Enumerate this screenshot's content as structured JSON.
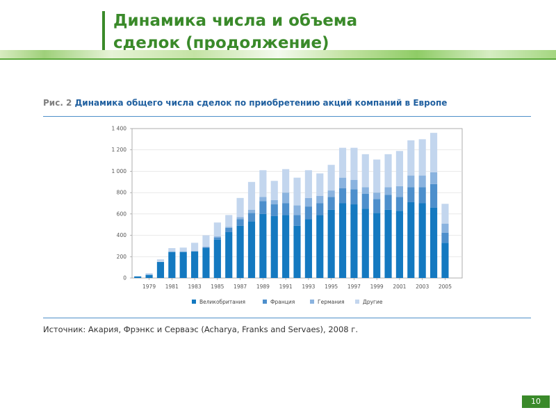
{
  "slide": {
    "title": "Динамика числа и объема\nсделок (продолжение)",
    "page_number": "10"
  },
  "figure": {
    "label": "Рис. 2",
    "caption": "Динамика общего числа сделок по приобретению акций компаний в Европе",
    "source": "Источник: Акария, Фрэнкс и Серваэс (Acharya, Franks and Servaes), 2008 г."
  },
  "chart_data": {
    "type": "bar",
    "stacked": true,
    "x": [
      1978,
      1979,
      1980,
      1981,
      1982,
      1983,
      1984,
      1985,
      1986,
      1987,
      1988,
      1989,
      1990,
      1991,
      1992,
      1993,
      1994,
      1995,
      1996,
      1997,
      1998,
      1999,
      2000,
      2001,
      2002,
      2003,
      2004,
      2005,
      2006
    ],
    "x_tick_labels": [
      "1979",
      "1981",
      "1983",
      "1985",
      "1987",
      "1989",
      "1991",
      "1993",
      "1995",
      "1997",
      "1999",
      "2001",
      "2003",
      "2005"
    ],
    "series": [
      {
        "name": "Великобритания",
        "color": "#1479c0",
        "values": [
          15,
          30,
          150,
          245,
          245,
          250,
          280,
          360,
          430,
          490,
          530,
          600,
          580,
          590,
          490,
          550,
          590,
          640,
          700,
          690,
          650,
          610,
          640,
          630,
          710,
          700,
          660,
          330,
          0
        ]
      },
      {
        "name": "Франция",
        "color": "#4d8fcc",
        "values": [
          0,
          0,
          0,
          0,
          0,
          0,
          10,
          20,
          40,
          60,
          80,
          120,
          110,
          110,
          100,
          120,
          110,
          120,
          140,
          140,
          140,
          130,
          140,
          130,
          140,
          150,
          220,
          95,
          0
        ]
      },
      {
        "name": "Германия",
        "color": "#8ab3df",
        "values": [
          0,
          0,
          0,
          0,
          0,
          0,
          0,
          10,
          10,
          20,
          30,
          40,
          40,
          100,
          90,
          80,
          70,
          60,
          100,
          90,
          60,
          60,
          70,
          100,
          110,
          110,
          110,
          85,
          0
        ]
      },
      {
        "name": "Другие",
        "color": "#c3d6ee",
        "values": [
          0,
          15,
          25,
          35,
          40,
          80,
          110,
          130,
          110,
          180,
          260,
          250,
          180,
          220,
          260,
          260,
          210,
          240,
          280,
          300,
          310,
          310,
          310,
          330,
          330,
          340,
          370,
          185,
          0
        ]
      }
    ],
    "ylim": [
      0,
      1400
    ],
    "y_ticks": [
      "0",
      "200",
      "400",
      "600",
      "800",
      "1 000",
      "1 200",
      "1 400"
    ],
    "y_tick_values": [
      0,
      200,
      400,
      600,
      800,
      1000,
      1200,
      1400
    ],
    "legend_position": "bottom",
    "grid": true
  }
}
